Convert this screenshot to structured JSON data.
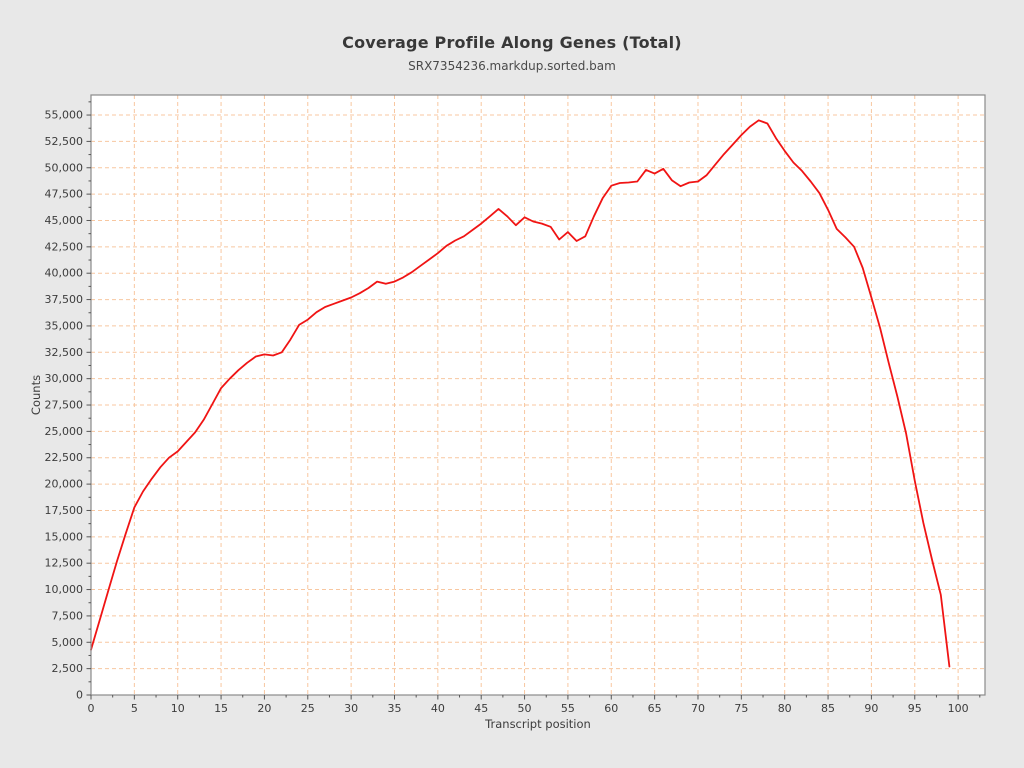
{
  "chart_data": {
    "type": "line",
    "title": "Coverage Profile Along Genes (Total)",
    "subtitle": "SRX7354236.markdup.sorted.bam",
    "xlabel": "Transcript position",
    "ylabel": "Counts",
    "xlim": [
      0,
      103.1
    ],
    "ylim": [
      0,
      56900
    ],
    "x_ticks": [
      0,
      5,
      10,
      15,
      20,
      25,
      30,
      35,
      40,
      45,
      50,
      55,
      60,
      65,
      70,
      75,
      80,
      85,
      90,
      95,
      100
    ],
    "y_ticks": [
      0,
      2500,
      5000,
      7500,
      10000,
      12500,
      15000,
      17500,
      20000,
      22500,
      25000,
      27500,
      30000,
      32500,
      35000,
      37500,
      40000,
      42500,
      45000,
      47500,
      50000,
      52500,
      55000
    ],
    "grid": true,
    "legend": "none",
    "colors": {
      "line": "#f01414",
      "grid": "#f8c7a0",
      "figure_background": "#e8e8e8",
      "plot_background": "#ffffff",
      "spine": "#8a8a8a",
      "tick": "#555555",
      "text": "#3c3c3c"
    },
    "x": [
      0,
      1,
      2,
      3,
      4,
      5,
      6,
      7,
      8,
      9,
      10,
      11,
      12,
      13,
      14,
      15,
      16,
      17,
      18,
      19,
      20,
      21,
      22,
      23,
      24,
      25,
      26,
      27,
      28,
      29,
      30,
      31,
      32,
      33,
      34,
      35,
      36,
      37,
      38,
      39,
      40,
      41,
      42,
      43,
      44,
      45,
      46,
      47,
      48,
      49,
      50,
      51,
      52,
      53,
      54,
      55,
      56,
      57,
      58,
      59,
      60,
      61,
      62,
      63,
      64,
      65,
      66,
      67,
      68,
      69,
      70,
      71,
      72,
      73,
      74,
      75,
      76,
      77,
      78,
      79,
      80,
      81,
      82,
      83,
      84,
      85,
      86,
      87,
      88,
      89,
      90,
      91,
      92,
      93,
      94,
      95,
      96,
      97,
      98,
      99
    ],
    "series": [
      {
        "name": "SRX7354236.markdup.sorted.bam",
        "values": [
          4300,
          7100,
          9900,
          12700,
          15300,
          17800,
          19300,
          20500,
          21600,
          22500,
          23100,
          24000,
          24900,
          26100,
          27600,
          29100,
          30000,
          30800,
          31500,
          32100,
          32300,
          32200,
          32500,
          33700,
          35100,
          35600,
          36300,
          36800,
          37100,
          37400,
          37700,
          38100,
          38600,
          39200,
          39000,
          39200,
          39600,
          40100,
          40700,
          41300,
          41900,
          42600,
          43100,
          43500,
          44100,
          44700,
          45400,
          46100,
          45400,
          44550,
          45300,
          44900,
          44700,
          44400,
          43200,
          43900,
          43050,
          43500,
          45400,
          47100,
          48300,
          48550,
          48600,
          48700,
          49800,
          49450,
          49900,
          48800,
          48250,
          48600,
          48700,
          49300,
          50300,
          51300,
          52200,
          53100,
          53900,
          54500,
          54200,
          52800,
          51600,
          50500,
          49700,
          48700,
          47600,
          46000,
          44200,
          43400,
          42500,
          40500,
          37700,
          34800,
          31500,
          28300,
          24800,
          20300,
          16300,
          12800,
          9500,
          2700
        ]
      }
    ]
  }
}
